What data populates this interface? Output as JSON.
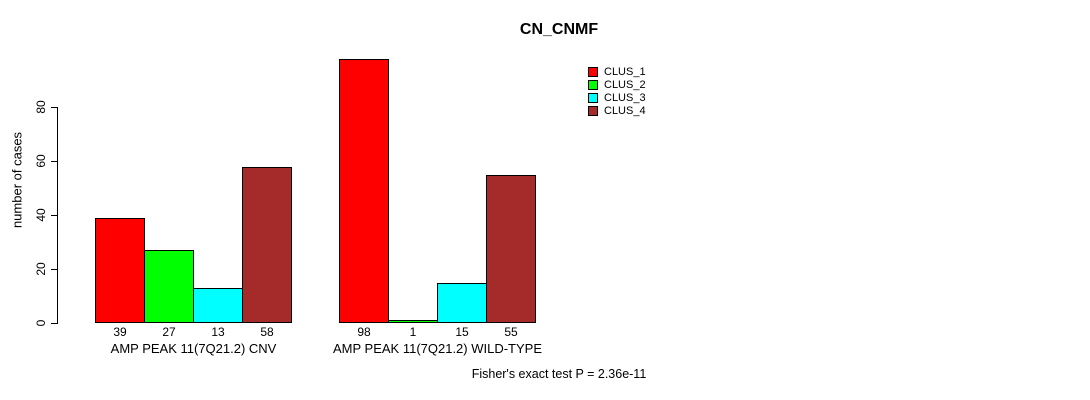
{
  "chart_data": {
    "type": "bar",
    "title": "CN_CNMF",
    "xlabel": "",
    "ylabel": "number of cases",
    "categories": [
      "AMP PEAK 11(7Q21.2) CNV",
      "AMP PEAK 11(7Q21.2) WILD-TYPE"
    ],
    "series": [
      {
        "name": "CLUS_1",
        "color": "#FF0000",
        "values": [
          39,
          98
        ]
      },
      {
        "name": "CLUS_2",
        "color": "#00FF00",
        "values": [
          27,
          1
        ]
      },
      {
        "name": "CLUS_3",
        "color": "#00FFFF",
        "values": [
          13,
          15
        ]
      },
      {
        "name": "CLUS_4",
        "color": "#A52A2A",
        "values": [
          58,
          55
        ]
      }
    ],
    "bar_value_labels_shown": true,
    "yticks": [
      0,
      20,
      40,
      60,
      80
    ],
    "ylim": [
      0,
      103
    ],
    "grid": false,
    "legend_position": "top-right-outside",
    "annotation": "Fisher's exact test P = 2.36e-11"
  },
  "colors": {
    "background": "#FFFFFF",
    "axis": "#000000",
    "bar_border": "#000000",
    "text": "#000000"
  }
}
